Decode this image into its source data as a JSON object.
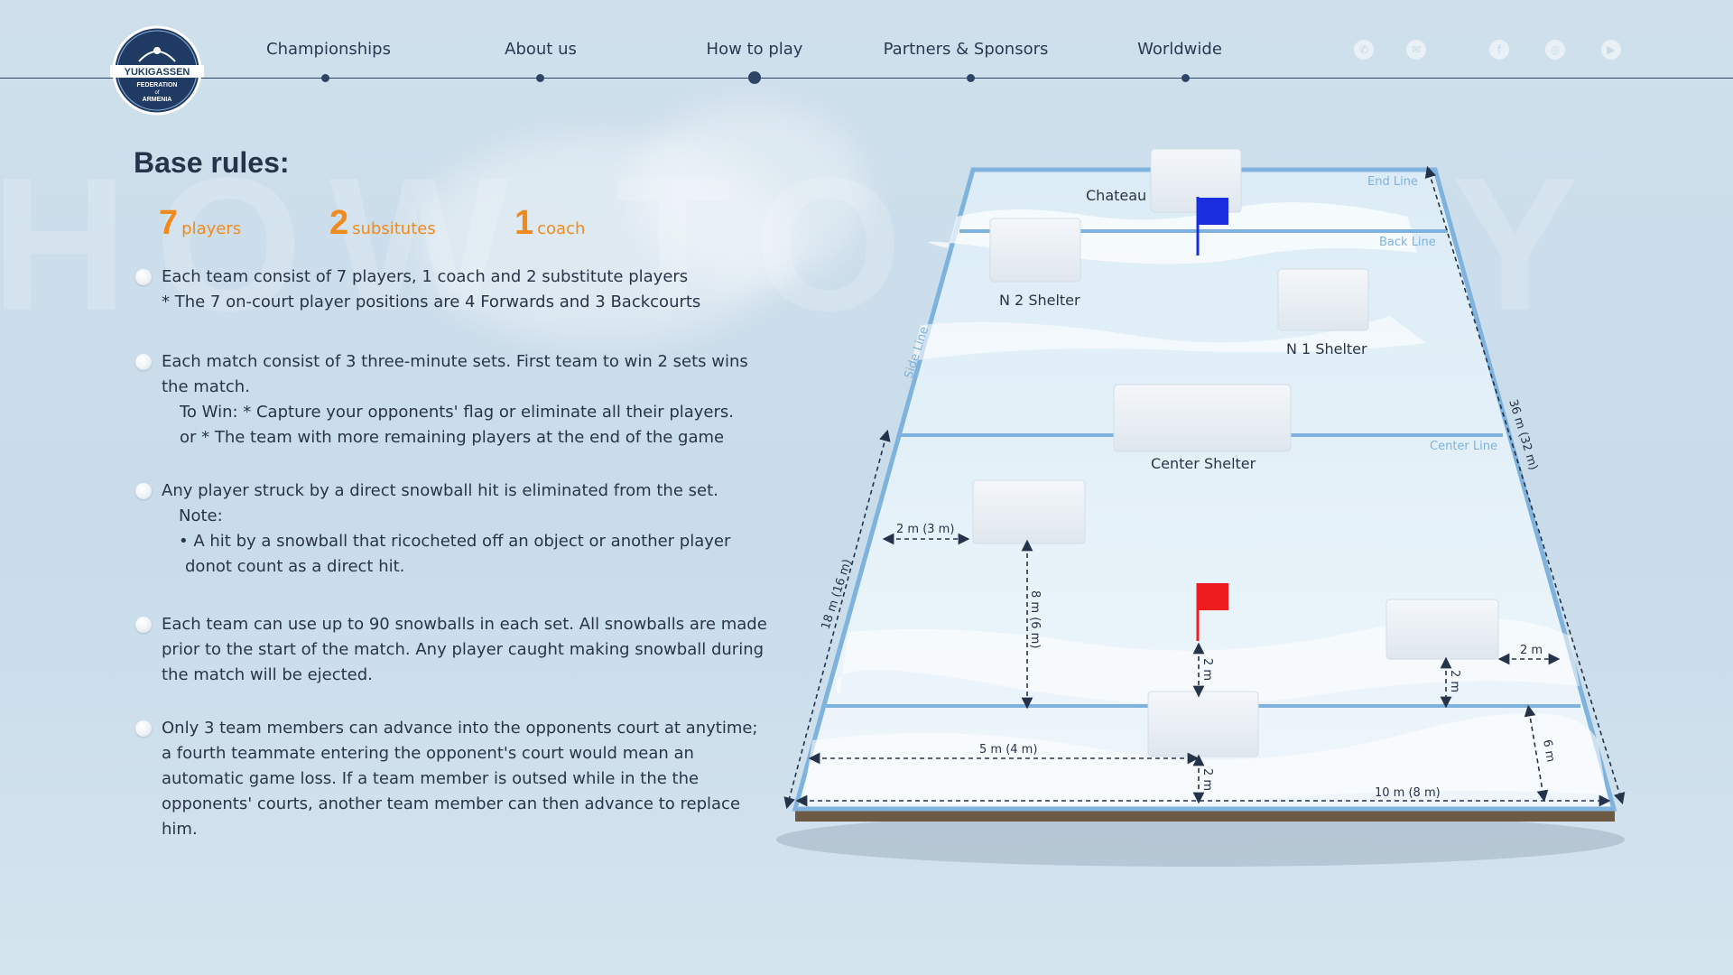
{
  "brand": {
    "logo_text_top": "YUKIGASSEN",
    "logo_text_mid": "FEDERATION",
    "logo_text_of": "of",
    "logo_text_bottom": "ARMENIA"
  },
  "nav": {
    "items": [
      {
        "label": "Championships"
      },
      {
        "label": "About us"
      },
      {
        "label": "How to play"
      },
      {
        "label": "Partners & Sponsors"
      },
      {
        "label": "Worldwide"
      }
    ],
    "active": "How to play",
    "social_icons": [
      "phone-icon",
      "mail-icon",
      "facebook-icon",
      "instagram-icon",
      "youtube-icon"
    ]
  },
  "rules": {
    "title": "Base rules:",
    "stats": [
      {
        "value": "7",
        "label": "players"
      },
      {
        "value": "2",
        "label": "subsitutes"
      },
      {
        "value": "1",
        "label": "coach"
      }
    ],
    "items": [
      {
        "lines": [
          "Each team consist of 7 players, 1 coach and 2 substitute players",
          "* The 7 on-court player positions are 4 Forwards and 3 Backcourts"
        ]
      },
      {
        "lines": [
          "Each match consist of 3 three-minute sets. First team to win 2 sets wins",
          "the match.",
          "To Win: * Capture your opponents' flag or eliminate all their players.",
          "or * The team with more remaining players at the end of the game"
        ]
      },
      {
        "lines": [
          "Any player struck by a direct snowball hit is eliminated from the set.",
          "Note:",
          "• A hit by a snowball that ricocheted off an object or another player",
          "donot count as a direct hit."
        ]
      },
      {
        "lines": [
          "Each team can use up to 90 snowballs in each set. All snowballs are made",
          "prior to the start of the match. Any player caught making snowball during",
          "the match will be ejected."
        ]
      },
      {
        "lines": [
          "Only 3 team members can advance into the opponents court at anytime;",
          "a fourth teammate entering the opponent's court would mean an",
          "automatic game loss. If a team member is outsed while in the the",
          "opponents' courts, another team member can then advance to replace",
          "him."
        ]
      }
    ]
  },
  "field": {
    "labels": {
      "chateau": "Chateau",
      "n2_shelter": "N 2 Shelter",
      "n1_shelter": "N 1 Shelter",
      "center_shelter": "Center Shelter",
      "end_line": "End Line",
      "back_line": "Back Line",
      "center_line": "Center Line",
      "side_line": "Side Line"
    },
    "dimensions": {
      "length": "36 m  (32 m)",
      "half_length": "18 m  (16 m)",
      "width": "10 m  (8 m)",
      "shelter_side": "2 m  (3 m)",
      "shelter_depth": "8 m  (6 m)",
      "flag_dist": "2 m",
      "right_shelter_side": "2 m",
      "right_shelter_depth": "2 m",
      "to_center_back": "5 m  (4 m)",
      "front_shelter_gap": "2 m",
      "back_zone": "6 m"
    },
    "colors": {
      "top_flag": "#1a2ee0",
      "bottom_flag": "#ee1c1c",
      "lines": "#7fb2dc",
      "accent": "#f08a1d",
      "dark": "#25344a"
    }
  }
}
